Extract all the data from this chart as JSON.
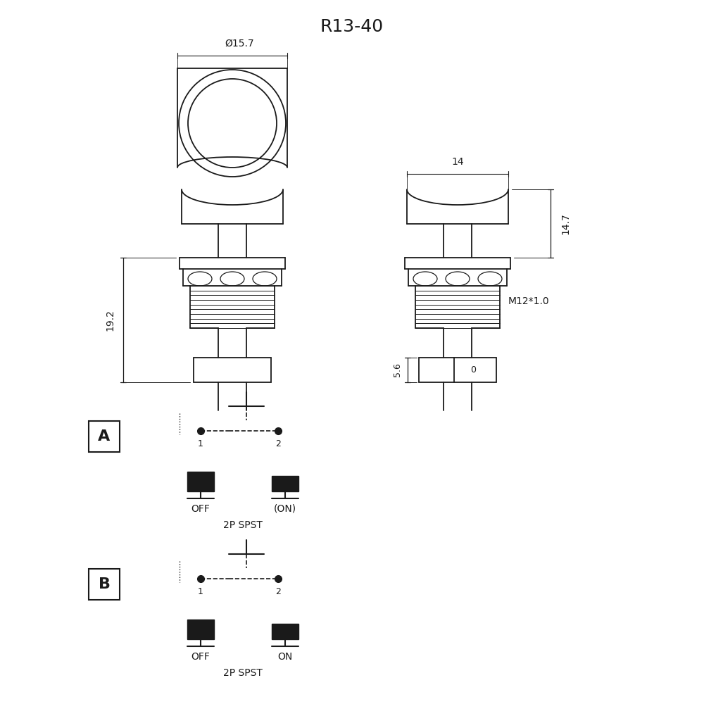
{
  "title": "R13-40",
  "bg_color": "#ffffff",
  "line_color": "#1a1a1a",
  "font_size_title": 18,
  "font_size_dim": 10,
  "dim_15_7": "Ø15.7",
  "dim_14": "14",
  "dim_14_7": "14.7",
  "dim_19_2": "19.2",
  "dim_M12": "M12*1.0",
  "dim_5_6": "5.6",
  "dim_0": "0",
  "label_A": "A",
  "label_B": "B",
  "label_1": "1",
  "label_2": "2",
  "label_OFF": "OFF",
  "label_ON_A": "(ON)",
  "label_ON_B": "ON",
  "label_2P_SPST": "2P SPST"
}
